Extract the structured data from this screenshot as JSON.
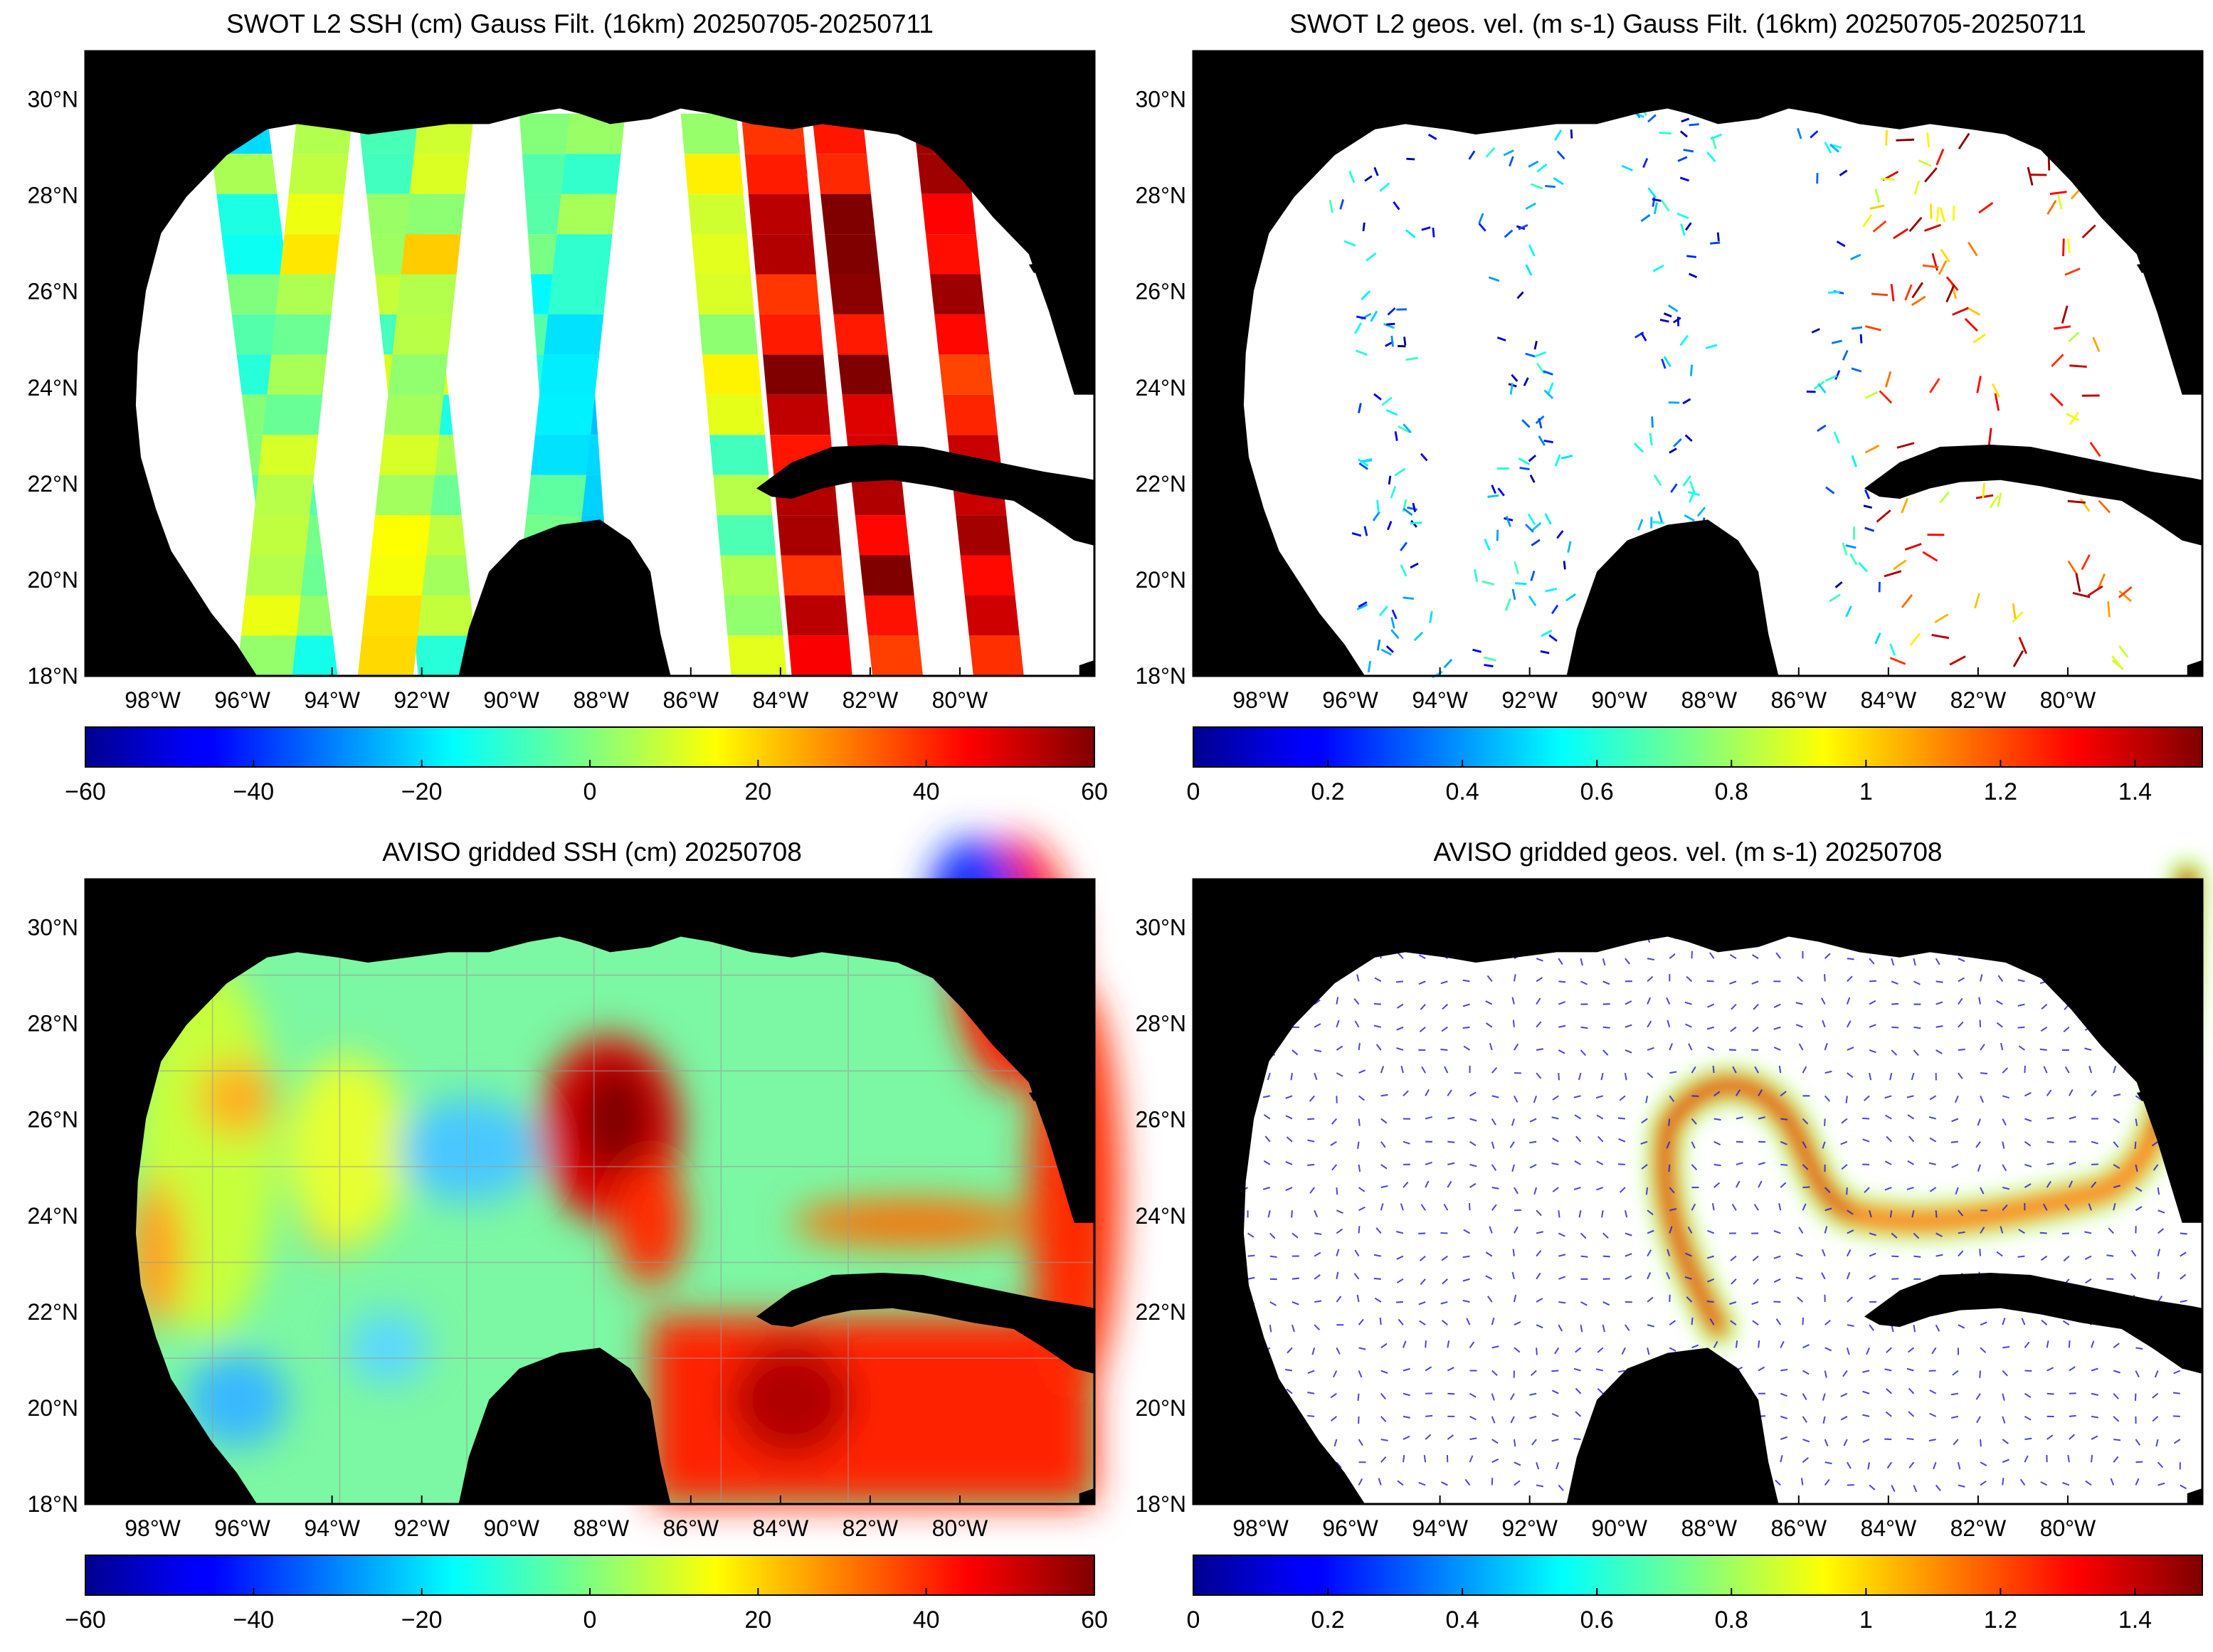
{
  "panels": [
    {
      "id": "ssh_swot",
      "title": "SWOT L2 SSH (cm) Gauss Filt. (16km) 20250705-20250711",
      "kind": "ssh_swath",
      "colorbar": {
        "min": -60,
        "max": 60,
        "ticks": [
          "−60",
          "−40",
          "−20",
          "0",
          "20",
          "40",
          "60"
        ]
      }
    },
    {
      "id": "vel_swot",
      "title": "SWOT L2 geos. vel. (m s-1) Gauss Filt. (16km) 20250705-20250711",
      "kind": "vel_swath",
      "colorbar": {
        "min": 0,
        "max": 1.5,
        "ticks": [
          "0",
          "0.2",
          "0.4",
          "0.6",
          "0.8",
          "1",
          "1.2",
          "1.4"
        ]
      }
    },
    {
      "id": "ssh_aviso",
      "title": "AVISO gridded SSH (cm) 20250708",
      "kind": "ssh_grid",
      "colorbar": {
        "min": -60,
        "max": 60,
        "ticks": [
          "−60",
          "−40",
          "−20",
          "0",
          "20",
          "40",
          "60"
        ]
      }
    },
    {
      "id": "vel_aviso",
      "title": "AVISO gridded geos. vel. (m s-1)  20250708",
      "kind": "vel_grid",
      "colorbar": {
        "min": 0,
        "max": 1.5,
        "ticks": [
          "0",
          "0.2",
          "0.4",
          "0.6",
          "0.8",
          "1",
          "1.2",
          "1.4"
        ]
      }
    }
  ],
  "map": {
    "lon_range": [
      -99.5,
      -77
    ],
    "lat_range": [
      18,
      31
    ],
    "lon_ticks": [
      "98°W",
      "96°W",
      "94°W",
      "92°W",
      "90°W",
      "88°W",
      "86°W",
      "84°W",
      "82°W",
      "80°W"
    ],
    "lat_ticks": [
      "18°N",
      "20°N",
      "22°N",
      "24°N",
      "26°N",
      "28°N",
      "30°N"
    ],
    "land_color": "#000000",
    "ocean_no_data_color": "#ffffff",
    "colormap": "jet"
  }
}
